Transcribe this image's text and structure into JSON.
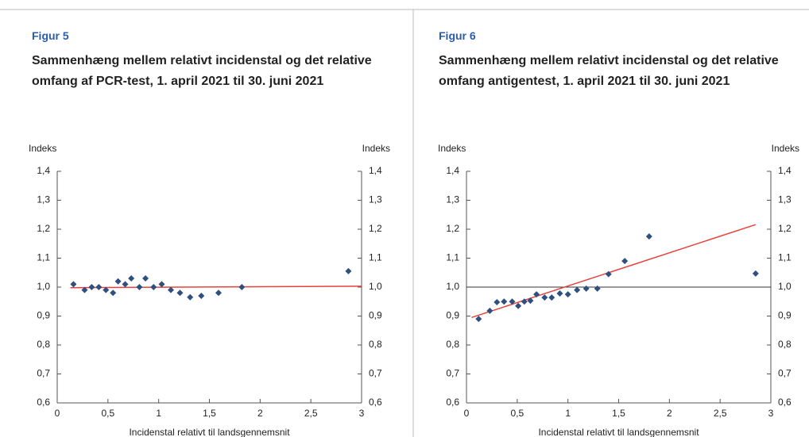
{
  "chart_data": [
    {
      "type": "scatter",
      "figure": "Figur 5",
      "title": "Sammenhæng mellem relativt incidenstal og det relative omfang af PCR-test, 1. april 2021 til 30. juni 2021",
      "y_label": "Indeks",
      "y2_label": "Indeks",
      "x_label": "Incidenstal  relativt til landsgennemsnit",
      "x": [
        0.16,
        0.27,
        0.34,
        0.41,
        0.48,
        0.55,
        0.6,
        0.67,
        0.73,
        0.81,
        0.87,
        0.95,
        1.03,
        1.12,
        1.21,
        1.31,
        1.42,
        1.59,
        1.82,
        2.87
      ],
      "values": [
        1.01,
        0.99,
        1.0,
        1.0,
        0.99,
        0.98,
        1.02,
        1.01,
        1.03,
        1.0,
        1.03,
        1.0,
        1.01,
        0.99,
        0.98,
        0.965,
        0.97,
        0.98,
        1.0,
        1.055
      ],
      "color": "#2f4f7f",
      "trend": {
        "x": [
          0.13,
          3.0
        ],
        "values": [
          0.998,
          1.003
        ],
        "color": "#e8413c"
      },
      "xlim": [
        0,
        3
      ],
      "xticks": [
        0,
        {
          "value": 0.5,
          "label": "0,5"
        },
        1,
        {
          "value": 1.5,
          "label": "1,5"
        },
        2,
        {
          "value": 2.5,
          "label": "2,5"
        },
        3
      ],
      "ylim": [
        0.6,
        1.4
      ],
      "yticks": [
        {
          "value": 0.6,
          "label": "0,6"
        },
        {
          "value": 0.7,
          "label": "0,7"
        },
        {
          "value": 0.8,
          "label": "0,8"
        },
        {
          "value": 0.9,
          "label": "0,9"
        },
        {
          "value": 1.0,
          "label": "1,0"
        },
        {
          "value": 1.1,
          "label": "1,1"
        },
        {
          "value": 1.2,
          "label": "1,2"
        },
        {
          "value": 1.3,
          "label": "1,3"
        },
        {
          "value": 1.4,
          "label": "1,4"
        }
      ],
      "y2lim": [
        0.6,
        1.4
      ],
      "y2ticks": [
        {
          "value": 0.6,
          "label": "0,6"
        },
        {
          "value": 0.7,
          "label": "0,7"
        },
        {
          "value": 0.8,
          "label": "0,8"
        },
        {
          "value": 0.9,
          "label": "0,9"
        },
        {
          "value": 1.0,
          "label": "1,0"
        },
        {
          "value": 1.1,
          "label": "1,1"
        },
        {
          "value": 1.2,
          "label": "1,2"
        },
        {
          "value": 1.3,
          "label": "1,3"
        },
        {
          "value": 1.4,
          "label": "1,4"
        }
      ]
    },
    {
      "type": "scatter",
      "figure": "Figur 6",
      "title": "Sammenhæng mellem relativt incidenstal og det relative omfang antigentest, 1. april 2021 til 30. juni 2021",
      "y_label": "Indeks",
      "y2_label": "Indeks",
      "x_label": "Incidenstal  relativt til landsgennemsnit",
      "x": [
        0.12,
        0.23,
        0.3,
        0.37,
        0.45,
        0.51,
        0.57,
        0.63,
        0.69,
        0.77,
        0.84,
        0.92,
        1.0,
        1.09,
        1.18,
        1.29,
        1.4,
        1.56,
        1.8,
        2.85
      ],
      "values": [
        0.89,
        0.918,
        0.948,
        0.95,
        0.95,
        0.935,
        0.95,
        0.953,
        0.975,
        0.964,
        0.964,
        0.978,
        0.975,
        0.99,
        0.995,
        0.995,
        1.045,
        1.09,
        1.175,
        1.047
      ],
      "color": "#2f4f7f",
      "trend": {
        "x": [
          0.05,
          2.85
        ],
        "values": [
          0.895,
          1.216
        ],
        "color": "#e8413c"
      },
      "reference_line": 1.0,
      "xlim": [
        0,
        3
      ],
      "xticks": [
        0,
        {
          "value": 0.5,
          "label": "0,5"
        },
        1,
        {
          "value": 1.5,
          "label": "1,5"
        },
        2,
        {
          "value": 2.5,
          "label": "2,5"
        },
        3
      ],
      "ylim": [
        0.6,
        1.4
      ],
      "yticks": [
        {
          "value": 0.6,
          "label": "0,6"
        },
        {
          "value": 0.7,
          "label": "0,7"
        },
        {
          "value": 0.8,
          "label": "0,8"
        },
        {
          "value": 0.9,
          "label": "0,9"
        },
        {
          "value": 1.0,
          "label": "1,0"
        },
        {
          "value": 1.1,
          "label": "1,1"
        },
        {
          "value": 1.2,
          "label": "1,2"
        },
        {
          "value": 1.3,
          "label": "1,3"
        },
        {
          "value": 1.4,
          "label": "1,4"
        }
      ],
      "y2lim": [
        0.6,
        1.4
      ],
      "y2ticks": [
        {
          "value": 0.6,
          "label": "0,6"
        },
        {
          "value": 0.7,
          "label": "0,7"
        },
        {
          "value": 0.8,
          "label": "0,8"
        },
        {
          "value": 0.9,
          "label": "0,9"
        },
        {
          "value": 1.0,
          "label": "1,0"
        },
        {
          "value": 1.1,
          "label": "1,1"
        },
        {
          "value": 1.2,
          "label": "1,2"
        },
        {
          "value": 1.3,
          "label": "1,3"
        },
        {
          "value": 1.4,
          "label": "1,4"
        }
      ]
    }
  ]
}
